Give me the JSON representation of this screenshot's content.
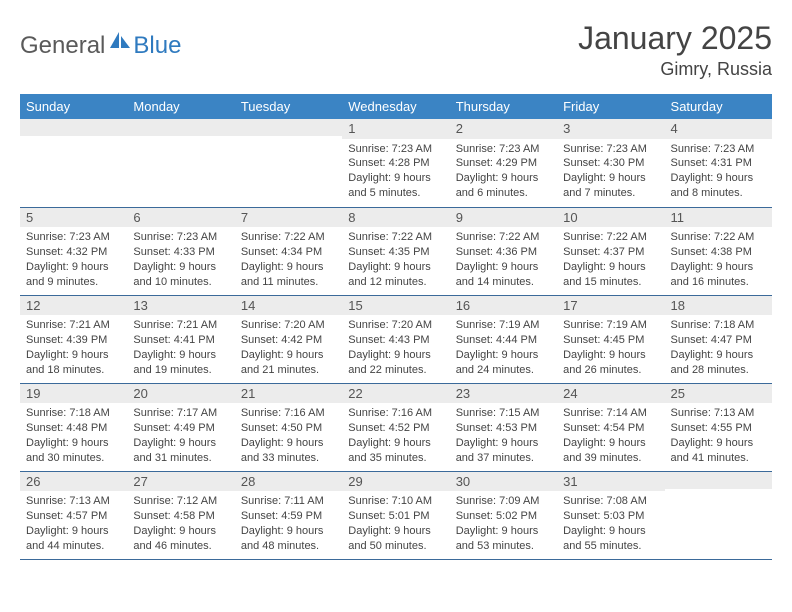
{
  "logo": {
    "part1": "General",
    "part2": "Blue"
  },
  "title": "January 2025",
  "location": "Gimry, Russia",
  "colors": {
    "header_bg": "#3b84c4",
    "header_text": "#ffffff",
    "daynum_bg": "#ececec",
    "border": "#3b6a9a",
    "logo_blue": "#2f7abf",
    "body_text": "#444444"
  },
  "weekdays": [
    "Sunday",
    "Monday",
    "Tuesday",
    "Wednesday",
    "Thursday",
    "Friday",
    "Saturday"
  ],
  "weeks": [
    [
      {
        "n": "",
        "sr": "",
        "ss": "",
        "dl": ""
      },
      {
        "n": "",
        "sr": "",
        "ss": "",
        "dl": ""
      },
      {
        "n": "",
        "sr": "",
        "ss": "",
        "dl": ""
      },
      {
        "n": "1",
        "sr": "Sunrise: 7:23 AM",
        "ss": "Sunset: 4:28 PM",
        "dl": "Daylight: 9 hours and 5 minutes."
      },
      {
        "n": "2",
        "sr": "Sunrise: 7:23 AM",
        "ss": "Sunset: 4:29 PM",
        "dl": "Daylight: 9 hours and 6 minutes."
      },
      {
        "n": "3",
        "sr": "Sunrise: 7:23 AM",
        "ss": "Sunset: 4:30 PM",
        "dl": "Daylight: 9 hours and 7 minutes."
      },
      {
        "n": "4",
        "sr": "Sunrise: 7:23 AM",
        "ss": "Sunset: 4:31 PM",
        "dl": "Daylight: 9 hours and 8 minutes."
      }
    ],
    [
      {
        "n": "5",
        "sr": "Sunrise: 7:23 AM",
        "ss": "Sunset: 4:32 PM",
        "dl": "Daylight: 9 hours and 9 minutes."
      },
      {
        "n": "6",
        "sr": "Sunrise: 7:23 AM",
        "ss": "Sunset: 4:33 PM",
        "dl": "Daylight: 9 hours and 10 minutes."
      },
      {
        "n": "7",
        "sr": "Sunrise: 7:22 AM",
        "ss": "Sunset: 4:34 PM",
        "dl": "Daylight: 9 hours and 11 minutes."
      },
      {
        "n": "8",
        "sr": "Sunrise: 7:22 AM",
        "ss": "Sunset: 4:35 PM",
        "dl": "Daylight: 9 hours and 12 minutes."
      },
      {
        "n": "9",
        "sr": "Sunrise: 7:22 AM",
        "ss": "Sunset: 4:36 PM",
        "dl": "Daylight: 9 hours and 14 minutes."
      },
      {
        "n": "10",
        "sr": "Sunrise: 7:22 AM",
        "ss": "Sunset: 4:37 PM",
        "dl": "Daylight: 9 hours and 15 minutes."
      },
      {
        "n": "11",
        "sr": "Sunrise: 7:22 AM",
        "ss": "Sunset: 4:38 PM",
        "dl": "Daylight: 9 hours and 16 minutes."
      }
    ],
    [
      {
        "n": "12",
        "sr": "Sunrise: 7:21 AM",
        "ss": "Sunset: 4:39 PM",
        "dl": "Daylight: 9 hours and 18 minutes."
      },
      {
        "n": "13",
        "sr": "Sunrise: 7:21 AM",
        "ss": "Sunset: 4:41 PM",
        "dl": "Daylight: 9 hours and 19 minutes."
      },
      {
        "n": "14",
        "sr": "Sunrise: 7:20 AM",
        "ss": "Sunset: 4:42 PM",
        "dl": "Daylight: 9 hours and 21 minutes."
      },
      {
        "n": "15",
        "sr": "Sunrise: 7:20 AM",
        "ss": "Sunset: 4:43 PM",
        "dl": "Daylight: 9 hours and 22 minutes."
      },
      {
        "n": "16",
        "sr": "Sunrise: 7:19 AM",
        "ss": "Sunset: 4:44 PM",
        "dl": "Daylight: 9 hours and 24 minutes."
      },
      {
        "n": "17",
        "sr": "Sunrise: 7:19 AM",
        "ss": "Sunset: 4:45 PM",
        "dl": "Daylight: 9 hours and 26 minutes."
      },
      {
        "n": "18",
        "sr": "Sunrise: 7:18 AM",
        "ss": "Sunset: 4:47 PM",
        "dl": "Daylight: 9 hours and 28 minutes."
      }
    ],
    [
      {
        "n": "19",
        "sr": "Sunrise: 7:18 AM",
        "ss": "Sunset: 4:48 PM",
        "dl": "Daylight: 9 hours and 30 minutes."
      },
      {
        "n": "20",
        "sr": "Sunrise: 7:17 AM",
        "ss": "Sunset: 4:49 PM",
        "dl": "Daylight: 9 hours and 31 minutes."
      },
      {
        "n": "21",
        "sr": "Sunrise: 7:16 AM",
        "ss": "Sunset: 4:50 PM",
        "dl": "Daylight: 9 hours and 33 minutes."
      },
      {
        "n": "22",
        "sr": "Sunrise: 7:16 AM",
        "ss": "Sunset: 4:52 PM",
        "dl": "Daylight: 9 hours and 35 minutes."
      },
      {
        "n": "23",
        "sr": "Sunrise: 7:15 AM",
        "ss": "Sunset: 4:53 PM",
        "dl": "Daylight: 9 hours and 37 minutes."
      },
      {
        "n": "24",
        "sr": "Sunrise: 7:14 AM",
        "ss": "Sunset: 4:54 PM",
        "dl": "Daylight: 9 hours and 39 minutes."
      },
      {
        "n": "25",
        "sr": "Sunrise: 7:13 AM",
        "ss": "Sunset: 4:55 PM",
        "dl": "Daylight: 9 hours and 41 minutes."
      }
    ],
    [
      {
        "n": "26",
        "sr": "Sunrise: 7:13 AM",
        "ss": "Sunset: 4:57 PM",
        "dl": "Daylight: 9 hours and 44 minutes."
      },
      {
        "n": "27",
        "sr": "Sunrise: 7:12 AM",
        "ss": "Sunset: 4:58 PM",
        "dl": "Daylight: 9 hours and 46 minutes."
      },
      {
        "n": "28",
        "sr": "Sunrise: 7:11 AM",
        "ss": "Sunset: 4:59 PM",
        "dl": "Daylight: 9 hours and 48 minutes."
      },
      {
        "n": "29",
        "sr": "Sunrise: 7:10 AM",
        "ss": "Sunset: 5:01 PM",
        "dl": "Daylight: 9 hours and 50 minutes."
      },
      {
        "n": "30",
        "sr": "Sunrise: 7:09 AM",
        "ss": "Sunset: 5:02 PM",
        "dl": "Daylight: 9 hours and 53 minutes."
      },
      {
        "n": "31",
        "sr": "Sunrise: 7:08 AM",
        "ss": "Sunset: 5:03 PM",
        "dl": "Daylight: 9 hours and 55 minutes."
      },
      {
        "n": "",
        "sr": "",
        "ss": "",
        "dl": ""
      }
    ]
  ]
}
